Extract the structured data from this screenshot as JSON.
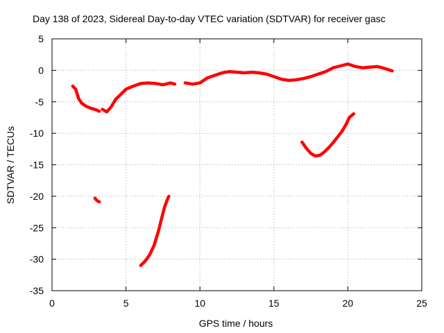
{
  "chart_data": {
    "type": "line",
    "title": "Day 138 of 2023, Sidereal Day-to-day VTEC variation (SDTVAR) for receiver gasc",
    "xlabel": "GPS time / hours",
    "ylabel": "SDTVAR / TECUs",
    "xlim": [
      0,
      25
    ],
    "ylim": [
      -35,
      5
    ],
    "xticks": [
      0,
      5,
      10,
      15,
      20,
      25
    ],
    "yticks": [
      5,
      0,
      -5,
      -10,
      -15,
      -20,
      -25,
      -30,
      -35
    ],
    "grid": true,
    "legend": "none",
    "series": [
      {
        "name": "segment-1",
        "color": "#ff0000",
        "x": [
          1.4,
          1.6,
          1.8,
          2.0,
          2.3,
          2.6,
          3.0,
          3.2
        ],
        "y": [
          -2.5,
          -3.0,
          -4.5,
          -5.2,
          -5.7,
          -6.0,
          -6.3,
          -6.5
        ]
      },
      {
        "name": "segment-2",
        "color": "#ff0000",
        "x": [
          3.4,
          3.7,
          4.0,
          4.3,
          4.7,
          5.0,
          5.5,
          6.0,
          6.5,
          7.0,
          7.5,
          8.0,
          8.3
        ],
        "y": [
          -6.2,
          -6.6,
          -5.8,
          -4.6,
          -3.7,
          -3.0,
          -2.5,
          -2.1,
          -2.0,
          -2.1,
          -2.3,
          -2.0,
          -2.2
        ]
      },
      {
        "name": "segment-3",
        "color": "#ff0000",
        "x": [
          9.0,
          9.5,
          10.0,
          10.5,
          11.0,
          11.5,
          12.0,
          12.5,
          13.0,
          13.5,
          14.0,
          14.5,
          15.0,
          15.5,
          16.0,
          16.5,
          17.0,
          17.5,
          18.0,
          18.5,
          19.0,
          19.5,
          20.0,
          20.5,
          21.0,
          21.5,
          22.0,
          22.5,
          23.0
        ],
        "y": [
          -2.0,
          -2.2,
          -2.0,
          -1.2,
          -0.8,
          -0.4,
          -0.2,
          -0.3,
          -0.4,
          -0.3,
          -0.4,
          -0.6,
          -1.0,
          -1.4,
          -1.6,
          -1.5,
          -1.3,
          -1.0,
          -0.6,
          -0.2,
          0.4,
          0.7,
          1.0,
          0.6,
          0.4,
          0.5,
          0.6,
          0.3,
          -0.1
        ]
      },
      {
        "name": "segment-4",
        "color": "#ff0000",
        "x": [
          2.9,
          3.0,
          3.1,
          3.2
        ],
        "y": [
          -20.3,
          -20.6,
          -20.8,
          -20.9
        ]
      },
      {
        "name": "segment-5",
        "color": "#ff0000",
        "x": [
          6.0,
          6.3,
          6.6,
          6.9,
          7.2,
          7.4,
          7.6,
          7.8,
          7.9
        ],
        "y": [
          -31.0,
          -30.3,
          -29.3,
          -27.8,
          -25.5,
          -23.6,
          -21.8,
          -20.5,
          -20.0
        ]
      },
      {
        "name": "segment-6",
        "color": "#ff0000",
        "x": [
          16.9,
          17.2,
          17.5,
          17.8,
          18.1,
          18.4,
          18.7,
          19.0,
          19.3,
          19.6,
          19.9,
          20.1,
          20.4
        ],
        "y": [
          -11.4,
          -12.4,
          -13.2,
          -13.6,
          -13.5,
          -13.0,
          -12.3,
          -11.5,
          -10.6,
          -9.7,
          -8.5,
          -7.5,
          -6.9
        ]
      }
    ]
  }
}
